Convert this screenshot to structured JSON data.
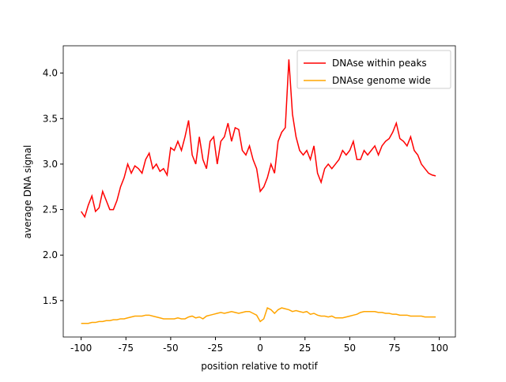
{
  "chart_data": {
    "type": "line",
    "xlabel": "position relative to motif",
    "ylabel": "average DNA signal",
    "x": [
      -100,
      -98,
      -96,
      -94,
      -92,
      -90,
      -88,
      -86,
      -84,
      -82,
      -80,
      -78,
      -76,
      -74,
      -72,
      -70,
      -68,
      -66,
      -64,
      -62,
      -60,
      -58,
      -56,
      -54,
      -52,
      -50,
      -48,
      -46,
      -44,
      -42,
      -40,
      -38,
      -36,
      -34,
      -32,
      -30,
      -28,
      -26,
      -24,
      -22,
      -20,
      -18,
      -16,
      -14,
      -12,
      -10,
      -8,
      -6,
      -4,
      -2,
      0,
      2,
      4,
      6,
      8,
      10,
      12,
      14,
      16,
      18,
      20,
      22,
      24,
      26,
      28,
      30,
      32,
      34,
      36,
      38,
      40,
      42,
      44,
      46,
      48,
      50,
      52,
      54,
      56,
      58,
      60,
      62,
      64,
      66,
      68,
      70,
      72,
      74,
      76,
      78,
      80,
      82,
      84,
      86,
      88,
      90,
      92,
      94,
      96,
      98
    ],
    "series": [
      {
        "name": "DNAse within peaks",
        "color": "#ff0000",
        "values": [
          2.48,
          2.42,
          2.55,
          2.65,
          2.48,
          2.52,
          2.7,
          2.6,
          2.5,
          2.5,
          2.6,
          2.75,
          2.85,
          3.0,
          2.9,
          2.98,
          2.95,
          2.9,
          3.05,
          3.12,
          2.95,
          3.0,
          2.92,
          2.95,
          2.88,
          3.18,
          3.15,
          3.25,
          3.15,
          3.3,
          3.48,
          3.1,
          3.0,
          3.3,
          3.05,
          2.95,
          3.25,
          3.3,
          3.0,
          3.25,
          3.3,
          3.45,
          3.25,
          3.4,
          3.38,
          3.15,
          3.1,
          3.2,
          3.05,
          2.95,
          2.7,
          2.75,
          2.85,
          3.0,
          2.9,
          3.25,
          3.35,
          3.4,
          4.15,
          3.55,
          3.3,
          3.15,
          3.1,
          3.15,
          3.05,
          3.2,
          2.9,
          2.8,
          2.95,
          3.0,
          2.95,
          3.0,
          3.05,
          3.15,
          3.1,
          3.15,
          3.25,
          3.05,
          3.05,
          3.15,
          3.1,
          3.15,
          3.2,
          3.1,
          3.2,
          3.25,
          3.28,
          3.35,
          3.45,
          3.28,
          3.25,
          3.2,
          3.3,
          3.15,
          3.1,
          3.0,
          2.95,
          2.9,
          2.88,
          2.87
        ]
      },
      {
        "name": "DNAse genome wide",
        "color": "#ffa500",
        "values": [
          1.25,
          1.25,
          1.25,
          1.26,
          1.26,
          1.27,
          1.27,
          1.28,
          1.28,
          1.29,
          1.29,
          1.3,
          1.3,
          1.31,
          1.32,
          1.33,
          1.33,
          1.33,
          1.34,
          1.34,
          1.33,
          1.32,
          1.31,
          1.3,
          1.3,
          1.3,
          1.3,
          1.31,
          1.3,
          1.3,
          1.32,
          1.33,
          1.31,
          1.32,
          1.3,
          1.33,
          1.34,
          1.35,
          1.36,
          1.37,
          1.36,
          1.37,
          1.38,
          1.37,
          1.36,
          1.37,
          1.38,
          1.38,
          1.36,
          1.34,
          1.27,
          1.3,
          1.42,
          1.4,
          1.36,
          1.4,
          1.42,
          1.41,
          1.4,
          1.38,
          1.39,
          1.38,
          1.37,
          1.38,
          1.35,
          1.36,
          1.34,
          1.33,
          1.33,
          1.32,
          1.33,
          1.31,
          1.31,
          1.31,
          1.32,
          1.33,
          1.34,
          1.35,
          1.37,
          1.38,
          1.38,
          1.38,
          1.38,
          1.37,
          1.37,
          1.36,
          1.36,
          1.35,
          1.35,
          1.34,
          1.34,
          1.34,
          1.33,
          1.33,
          1.33,
          1.33,
          1.32,
          1.32,
          1.32,
          1.32
        ]
      }
    ],
    "xlim": [
      -110,
      109
    ],
    "ylim": [
      1.1,
      4.3
    ],
    "xticks": [
      -100,
      -75,
      -50,
      -25,
      0,
      25,
      50,
      75,
      100
    ],
    "yticks": [
      1.5,
      {
        "value": 2,
        "label": "2.0"
      },
      2.5,
      {
        "value": 3,
        "label": "3.0"
      },
      3.5,
      {
        "value": 4,
        "label": "4.0"
      }
    ],
    "legend": "upper right"
  }
}
